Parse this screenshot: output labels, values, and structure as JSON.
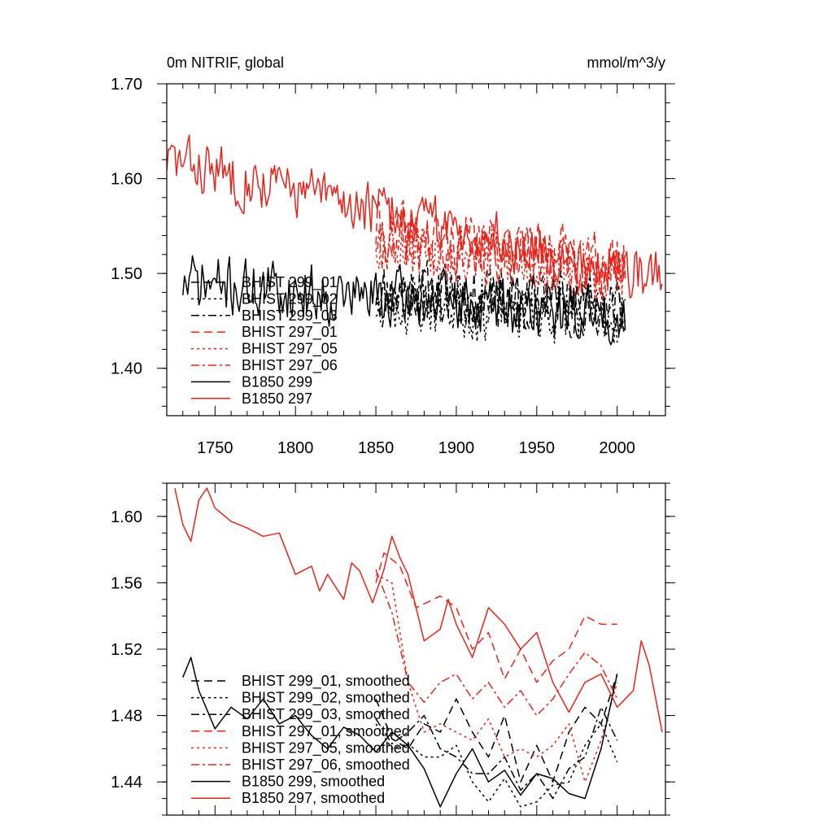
{
  "chart_data": [
    {
      "type": "line",
      "title": "0m NITRIF, global",
      "units": "mmol/m^3/y",
      "xlim": [
        1720,
        2030
      ],
      "ylim": [
        1.35,
        1.7
      ],
      "xticks": [
        1750,
        1800,
        1850,
        1900,
        1950,
        2000
      ],
      "yticks": [
        1.4,
        1.5,
        1.6,
        1.7
      ],
      "ytick_labels": [
        "1.40",
        "1.50",
        "1.60",
        "1.70"
      ],
      "legend": "lower-left",
      "series": [
        {
          "name": "BHIST 299_01",
          "color": "#000000",
          "dash": "dash",
          "seed": 11,
          "start": 1850,
          "end": 2005,
          "y0": 1.485,
          "y1": 1.465,
          "noise": 0.03
        },
        {
          "name": "BHIST 299_02",
          "color": "#000000",
          "dash": "dot",
          "seed": 23,
          "start": 1850,
          "end": 2005,
          "y0": 1.47,
          "y1": 1.455,
          "noise": 0.033
        },
        {
          "name": "BHIST 299_03",
          "color": "#000000",
          "dash": "dashdot",
          "seed": 37,
          "start": 1850,
          "end": 2005,
          "y0": 1.48,
          "y1": 1.465,
          "noise": 0.03
        },
        {
          "name": "BHIST 297_01",
          "color": "#e8231a",
          "dash": "dash",
          "seed": 41,
          "start": 1850,
          "end": 2005,
          "y0": 1.545,
          "y1": 1.505,
          "noise": 0.032
        },
        {
          "name": "BHIST 297_05",
          "color": "#e8231a",
          "dash": "dot",
          "seed": 53,
          "start": 1850,
          "end": 2005,
          "y0": 1.54,
          "y1": 1.495,
          "noise": 0.033
        },
        {
          "name": "BHIST 297_06",
          "color": "#e8231a",
          "dash": "dashdot",
          "seed": 67,
          "start": 1850,
          "end": 2005,
          "y0": 1.54,
          "y1": 1.5,
          "noise": 0.032
        },
        {
          "name": "B1850 299",
          "color": "#000000",
          "dash": "solid",
          "seed": 71,
          "start": 1730,
          "end": 2005,
          "y0": 1.49,
          "y1": 1.455,
          "noise": 0.03
        },
        {
          "name": "B1850 297",
          "color": "#e8231a",
          "dash": "solid",
          "seed": 83,
          "start": 1720,
          "end": 2028,
          "y0": 1.62,
          "y1": 1.495,
          "noise": 0.028
        }
      ]
    },
    {
      "type": "line",
      "title": "",
      "xlim": [
        1720,
        2030
      ],
      "ylim": [
        1.42,
        1.62
      ],
      "yticks": [
        1.44,
        1.48,
        1.52,
        1.56,
        1.6
      ],
      "ytick_labels": [
        "1.44",
        "1.48",
        "1.52",
        "1.56",
        "1.60"
      ],
      "legend": "lower-left",
      "series": [
        {
          "name": "BHIST 299_01, smoothed",
          "color": "#000000",
          "dash": "dash",
          "points": [
            [
              1850,
              1.49
            ],
            [
              1860,
              1.466
            ],
            [
              1870,
              1.46
            ],
            [
              1880,
              1.475
            ],
            [
              1890,
              1.47
            ],
            [
              1900,
              1.49
            ],
            [
              1910,
              1.47
            ],
            [
              1920,
              1.455
            ],
            [
              1930,
              1.48
            ],
            [
              1940,
              1.44
            ],
            [
              1950,
              1.462
            ],
            [
              1960,
              1.44
            ],
            [
              1970,
              1.47
            ],
            [
              1980,
              1.485
            ],
            [
              1990,
              1.475
            ],
            [
              2000,
              1.505
            ]
          ]
        },
        {
          "name": "BHIST 299_02, smoothed",
          "color": "#000000",
          "dash": "dot",
          "points": [
            [
              1850,
              1.475
            ],
            [
              1860,
              1.46
            ],
            [
              1870,
              1.463
            ],
            [
              1880,
              1.455
            ],
            [
              1890,
              1.455
            ],
            [
              1900,
              1.462
            ],
            [
              1910,
              1.44
            ],
            [
              1920,
              1.428
            ],
            [
              1930,
              1.442
            ],
            [
              1940,
              1.425
            ],
            [
              1950,
              1.428
            ],
            [
              1960,
              1.438
            ],
            [
              1970,
              1.44
            ],
            [
              1980,
              1.462
            ],
            [
              1990,
              1.475
            ],
            [
              2000,
              1.452
            ]
          ]
        },
        {
          "name": "BHIST 299_03, smoothed",
          "color": "#000000",
          "dash": "dashdot",
          "points": [
            [
              1850,
              1.478
            ],
            [
              1860,
              1.463
            ],
            [
              1870,
              1.47
            ],
            [
              1880,
              1.48
            ],
            [
              1890,
              1.46
            ],
            [
              1900,
              1.455
            ],
            [
              1910,
              1.445
            ],
            [
              1920,
              1.445
            ],
            [
              1930,
              1.455
            ],
            [
              1940,
              1.435
            ],
            [
              1950,
              1.445
            ],
            [
              1960,
              1.43
            ],
            [
              1970,
              1.448
            ],
            [
              1980,
              1.455
            ],
            [
              1990,
              1.485
            ],
            [
              2000,
              1.465
            ]
          ]
        },
        {
          "name": "BHIST 297_01, smoothed",
          "color": "#e8231a",
          "dash": "dash",
          "points": [
            [
              1850,
              1.56
            ],
            [
              1855,
              1.578
            ],
            [
              1865,
              1.57
            ],
            [
              1875,
              1.545
            ],
            [
              1890,
              1.552
            ],
            [
              1900,
              1.545
            ],
            [
              1910,
              1.52
            ],
            [
              1920,
              1.53
            ],
            [
              1930,
              1.502
            ],
            [
              1940,
              1.52
            ],
            [
              1950,
              1.5
            ],
            [
              1960,
              1.513
            ],
            [
              1970,
              1.52
            ],
            [
              1980,
              1.54
            ],
            [
              1990,
              1.535
            ],
            [
              2000,
              1.535
            ]
          ]
        },
        {
          "name": "BHIST 297_05, smoothed",
          "color": "#e8231a",
          "dash": "dot",
          "points": [
            [
              1850,
              1.565
            ],
            [
              1860,
              1.56
            ],
            [
              1870,
              1.5
            ],
            [
              1880,
              1.47
            ],
            [
              1890,
              1.475
            ],
            [
              1900,
              1.47
            ],
            [
              1910,
              1.465
            ],
            [
              1920,
              1.478
            ],
            [
              1930,
              1.455
            ],
            [
              1940,
              1.46
            ],
            [
              1950,
              1.455
            ],
            [
              1960,
              1.462
            ],
            [
              1970,
              1.475
            ],
            [
              1980,
              1.44
            ],
            [
              1990,
              1.465
            ],
            [
              2000,
              1.5
            ]
          ]
        },
        {
          "name": "BHIST 297_06, smoothed",
          "color": "#e8231a",
          "dash": "dashdot",
          "points": [
            [
              1850,
              1.568
            ],
            [
              1860,
              1.542
            ],
            [
              1870,
              1.5
            ],
            [
              1880,
              1.488
            ],
            [
              1890,
              1.5
            ],
            [
              1900,
              1.505
            ],
            [
              1910,
              1.49
            ],
            [
              1920,
              1.5
            ],
            [
              1930,
              1.485
            ],
            [
              1940,
              1.495
            ],
            [
              1950,
              1.48
            ],
            [
              1960,
              1.49
            ],
            [
              1970,
              1.505
            ],
            [
              1980,
              1.518
            ],
            [
              1990,
              1.51
            ],
            [
              2000,
              1.49
            ]
          ]
        },
        {
          "name": "B1850 299, smoothed",
          "color": "#000000",
          "dash": "solid",
          "points": [
            [
              1730,
              1.503
            ],
            [
              1735,
              1.515
            ],
            [
              1740,
              1.495
            ],
            [
              1750,
              1.472
            ],
            [
              1760,
              1.485
            ],
            [
              1770,
              1.478
            ],
            [
              1780,
              1.49
            ],
            [
              1790,
              1.475
            ],
            [
              1800,
              1.48
            ],
            [
              1810,
              1.468
            ],
            [
              1820,
              1.46
            ],
            [
              1830,
              1.473
            ],
            [
              1840,
              1.468
            ],
            [
              1850,
              1.458
            ],
            [
              1860,
              1.47
            ],
            [
              1870,
              1.462
            ],
            [
              1880,
              1.448
            ],
            [
              1890,
              1.425
            ],
            [
              1900,
              1.445
            ],
            [
              1910,
              1.46
            ],
            [
              1920,
              1.44
            ],
            [
              1930,
              1.447
            ],
            [
              1940,
              1.432
            ],
            [
              1950,
              1.445
            ],
            [
              1960,
              1.442
            ],
            [
              1970,
              1.433
            ],
            [
              1980,
              1.43
            ],
            [
              1990,
              1.46
            ],
            [
              2000,
              1.505
            ]
          ]
        },
        {
          "name": "B1850 297, smoothed",
          "color": "#e8231a",
          "dash": "solid",
          "points": [
            [
              1725,
              1.617
            ],
            [
              1730,
              1.595
            ],
            [
              1735,
              1.585
            ],
            [
              1740,
              1.61
            ],
            [
              1745,
              1.617
            ],
            [
              1750,
              1.605
            ],
            [
              1760,
              1.597
            ],
            [
              1770,
              1.593
            ],
            [
              1780,
              1.588
            ],
            [
              1790,
              1.59
            ],
            [
              1800,
              1.565
            ],
            [
              1810,
              1.57
            ],
            [
              1815,
              1.555
            ],
            [
              1820,
              1.565
            ],
            [
              1830,
              1.55
            ],
            [
              1835,
              1.572
            ],
            [
              1840,
              1.567
            ],
            [
              1848,
              1.548
            ],
            [
              1855,
              1.568
            ],
            [
              1860,
              1.588
            ],
            [
              1865,
              1.575
            ],
            [
              1870,
              1.565
            ],
            [
              1880,
              1.525
            ],
            [
              1890,
              1.532
            ],
            [
              1895,
              1.55
            ],
            [
              1900,
              1.535
            ],
            [
              1910,
              1.515
            ],
            [
              1920,
              1.545
            ],
            [
              1930,
              1.535
            ],
            [
              1940,
              1.52
            ],
            [
              1950,
              1.53
            ],
            [
              1960,
              1.5
            ],
            [
              1970,
              1.482
            ],
            [
              1980,
              1.5
            ],
            [
              1990,
              1.505
            ],
            [
              2000,
              1.485
            ],
            [
              2010,
              1.495
            ],
            [
              2015,
              1.525
            ],
            [
              2020,
              1.51
            ],
            [
              2028,
              1.47
            ]
          ]
        }
      ]
    }
  ]
}
